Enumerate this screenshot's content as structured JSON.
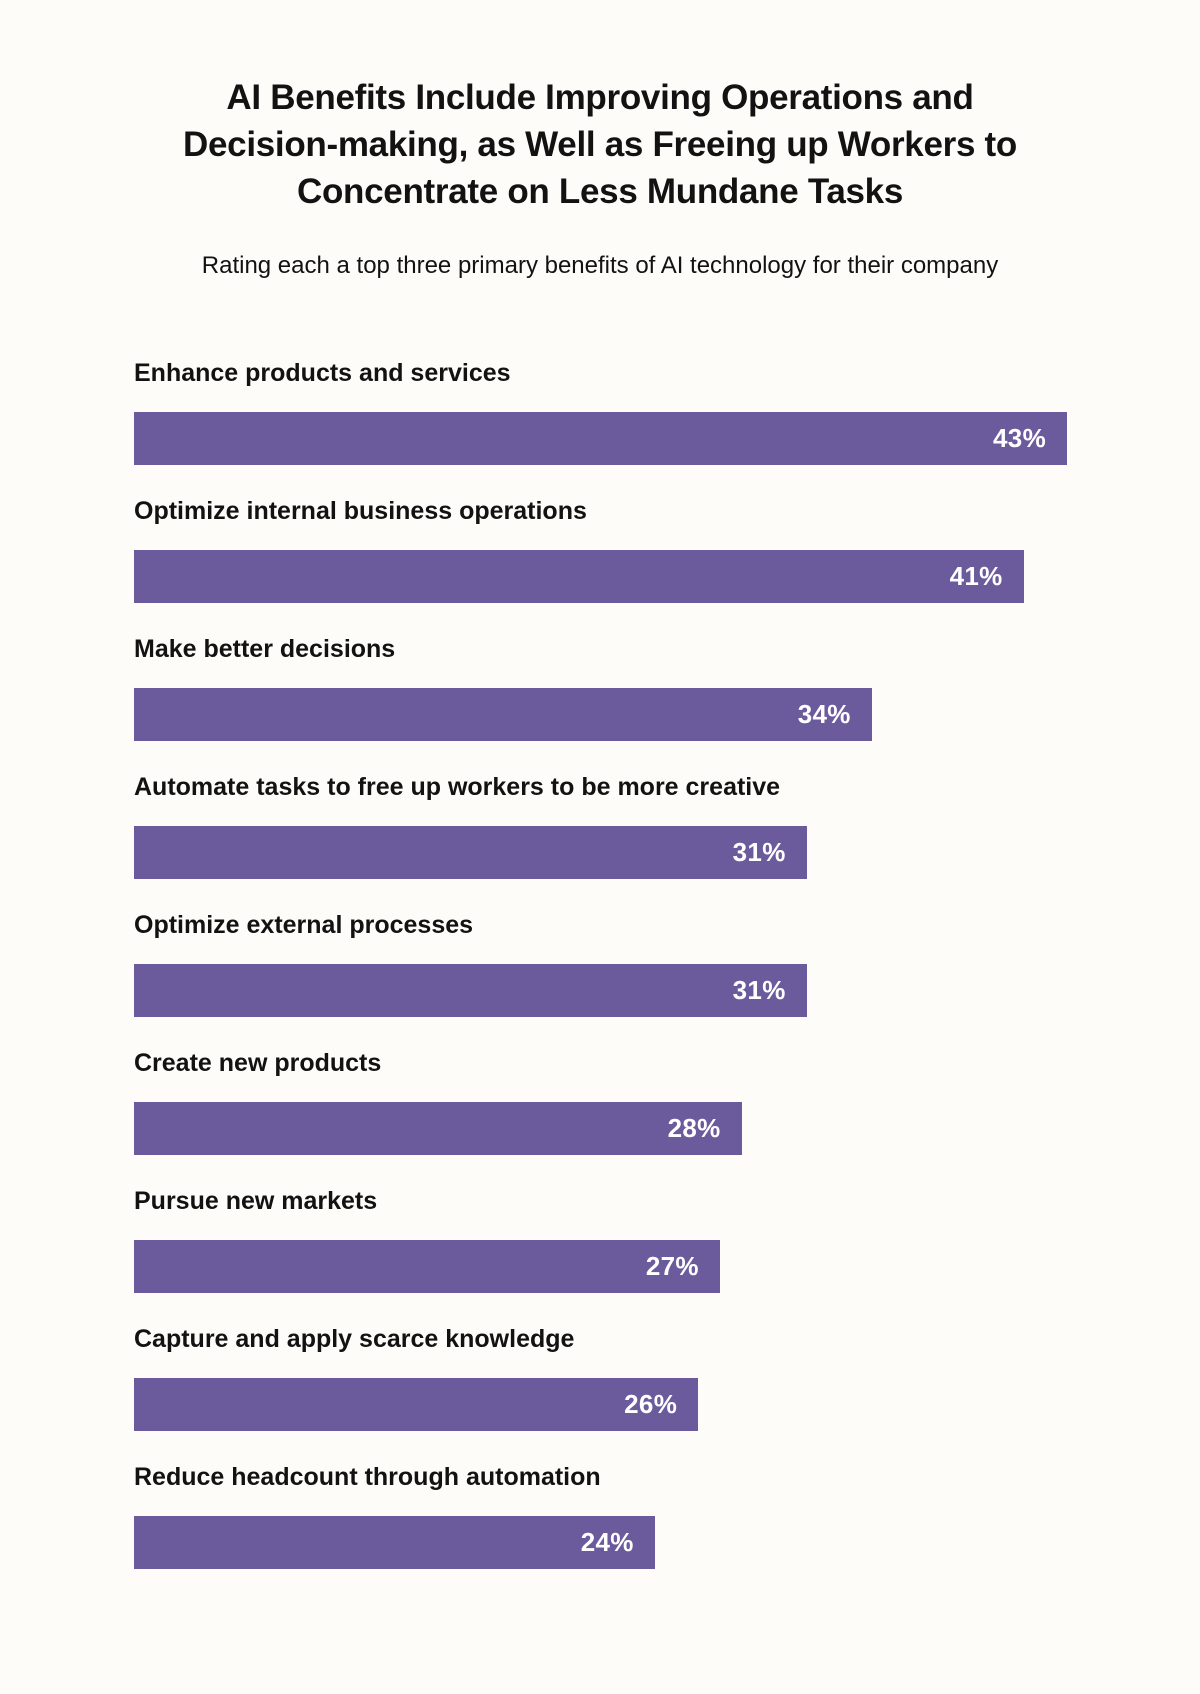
{
  "page": {
    "background_color": "#FDFCF8",
    "text_color": "#121212"
  },
  "header": {
    "title_lines": [
      "AI Benefits Include Improving Operations and",
      "Decision-making, as Well as Freeing up Workers to",
      "Concentrate on Less Mundane Tasks"
    ],
    "subtitle": "Rating each a top three primary benefits of AI technology for their company"
  },
  "chart_data": {
    "type": "bar",
    "orientation": "horizontal",
    "title": "AI Benefits Include Improving Operations and Decision-making, as Well as Freeing up Workers to Concentrate on Less Mundane Tasks",
    "subtitle": "Rating each a top three primary benefits of AI technology for their company",
    "categories": [
      "Enhance products and services",
      "Optimize internal business operations",
      "Make better decisions",
      "Automate tasks to free up workers to be more creative",
      "Optimize external processes",
      "Create new products",
      "Pursue new markets",
      "Capture and apply scarce knowledge",
      "Reduce headcount through automation"
    ],
    "values": [
      43,
      41,
      34,
      31,
      31,
      28,
      27,
      26,
      24
    ],
    "value_suffix": "%",
    "xlim": [
      0,
      43
    ],
    "bar_color": "#6B5B9D",
    "value_label_color": "#FFFFFF",
    "category_label_color": "#121212",
    "grid": false,
    "legend": false,
    "value_labels": "inside-right"
  }
}
